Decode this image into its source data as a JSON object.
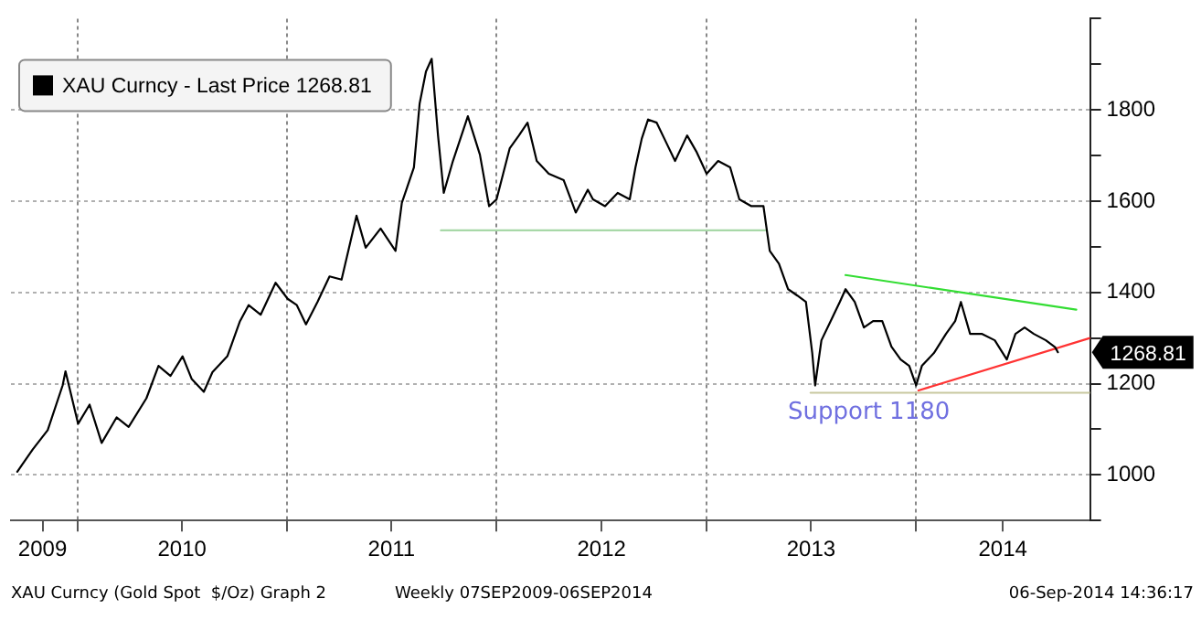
{
  "chart_data": {
    "type": "line",
    "legend": "top left",
    "grid": true,
    "marker": "none",
    "xlim": [
      "2009-09-07",
      "2014-10-31"
    ],
    "ylim": [
      900,
      2000
    ],
    "xticks": [
      {
        "value": "2009-11-01",
        "label": "2009"
      },
      {
        "value": "2010-01-01",
        "label": null
      },
      {
        "value": "2010-07-02",
        "label": "2010"
      },
      {
        "value": "2011-01-01",
        "label": null
      },
      {
        "value": "2011-07-02",
        "label": "2011"
      },
      {
        "value": "2012-01-01",
        "label": null
      },
      {
        "value": "2012-07-02",
        "label": "2012"
      },
      {
        "value": "2013-01-01",
        "label": null
      },
      {
        "value": "2013-07-02",
        "label": "2013"
      },
      {
        "value": "2014-01-01",
        "label": null
      },
      {
        "value": "2014-06-01",
        "label": "2014"
      }
    ],
    "yticks": [
      {
        "value": 900,
        "label": null
      },
      1000,
      {
        "value": 1100,
        "label": null
      },
      1200,
      {
        "value": 1300,
        "label": null
      },
      1400,
      {
        "value": 1500,
        "label": null
      },
      1600,
      {
        "value": 1700,
        "label": null
      },
      1800,
      {
        "value": 1900,
        "label": null
      },
      {
        "value": 2000,
        "label": null
      }
    ],
    "annotations": [
      "XAU Curncy (Gold Spot  $/Oz) Graph 2",
      "Weekly 07SEP2009-06SEP2014",
      "06-Sep-2014 14:36:17",
      "Support 1180",
      "1268.81"
    ],
    "series": [
      {
        "name": "XAU Curncy - Last Price 1268.81",
        "color": "#000000",
        "x": [
          "2009-09-18",
          "2009-10-15",
          "2009-11-10",
          "2009-12-06",
          "2009-12-11",
          "2010-01-02",
          "2010-01-22",
          "2010-02-12",
          "2010-03-10",
          "2010-03-31",
          "2010-05-01",
          "2010-05-22",
          "2010-06-12",
          "2010-07-03",
          "2010-07-19",
          "2010-08-09",
          "2010-08-24",
          "2010-09-19",
          "2010-10-11",
          "2010-10-26",
          "2010-11-16",
          "2010-12-12",
          "2011-01-02",
          "2011-01-18",
          "2011-02-03",
          "2011-02-23",
          "2011-03-16",
          "2011-04-06",
          "2011-05-02",
          "2011-05-18",
          "2011-06-13",
          "2011-07-09",
          "2011-07-20",
          "2011-08-10",
          "2011-08-20",
          "2011-08-31",
          "2011-09-10",
          "2011-09-21",
          "2011-10-01",
          "2011-10-17",
          "2011-11-12",
          "2011-12-03",
          "2011-12-19",
          "2012-01-01",
          "2012-01-24",
          "2012-02-09",
          "2012-02-24",
          "2012-03-11",
          "2012-04-01",
          "2012-04-27",
          "2012-05-18",
          "2012-06-08",
          "2012-06-17",
          "2012-07-08",
          "2012-07-30",
          "2012-08-20",
          "2012-08-30",
          "2012-09-10",
          "2012-09-21",
          "2012-10-06",
          "2012-10-22",
          "2012-11-07",
          "2012-11-28",
          "2012-12-14",
          "2013-01-01",
          "2013-01-21",
          "2013-02-11",
          "2013-02-27",
          "2013-03-20",
          "2013-04-10",
          "2013-04-21",
          "2013-05-07",
          "2013-05-23",
          "2013-06-08",
          "2013-06-23",
          "2013-07-04",
          "2013-07-09",
          "2013-07-20",
          "2013-08-05",
          "2013-08-21",
          "2013-08-31",
          "2013-09-16",
          "2013-10-02",
          "2013-10-18",
          "2013-11-03",
          "2013-11-19",
          "2013-12-05",
          "2013-12-20",
          "2014-01-01",
          "2014-01-11",
          "2014-02-01",
          "2014-02-22",
          "2014-03-10",
          "2014-03-20",
          "2014-04-05",
          "2014-04-26",
          "2014-05-18",
          "2014-06-08",
          "2014-06-23",
          "2014-07-09",
          "2014-07-25",
          "2014-08-15",
          "2014-08-31",
          "2014-09-05"
        ],
        "values": [
          1007,
          1056,
          1098,
          1196,
          1227,
          1112,
          1154,
          1070,
          1126,
          1105,
          1168,
          1239,
          1217,
          1260,
          1210,
          1182,
          1225,
          1260,
          1337,
          1372,
          1351,
          1421,
          1386,
          1372,
          1330,
          1379,
          1435,
          1428,
          1568,
          1498,
          1540,
          1491,
          1596,
          1674,
          1814,
          1884,
          1912,
          1744,
          1618,
          1688,
          1786,
          1702,
          1589,
          1604,
          1716,
          1744,
          1772,
          1688,
          1660,
          1646,
          1575,
          1625,
          1604,
          1589,
          1618,
          1604,
          1674,
          1737,
          1779,
          1772,
          1730,
          1688,
          1744,
          1709,
          1660,
          1688,
          1674,
          1604,
          1589,
          1589,
          1491,
          1463,
          1407,
          1393,
          1379,
          1267,
          1196,
          1295,
          1337,
          1379,
          1407,
          1379,
          1323,
          1337,
          1337,
          1281,
          1253,
          1239,
          1196,
          1239,
          1267,
          1309,
          1337,
          1379,
          1309,
          1309,
          1295,
          1253,
          1309,
          1323,
          1309,
          1295,
          1280,
          1268.81
        ]
      },
      {
        "type": "line",
        "color": "#a8d8a8",
        "x": [
          "2011-09-26",
          "2013-04-15"
        ],
        "values": [
          1536,
          1536
        ]
      },
      {
        "type": "line",
        "color": "#33dd33",
        "x": [
          "2013-08-31",
          "2014-10-07"
        ],
        "values": [
          1438,
          1362
        ]
      },
      {
        "type": "line",
        "color": "#ff3333",
        "x": [
          "2014-01-05",
          "2014-10-31"
        ],
        "values": [
          1185,
          1300
        ]
      },
      {
        "type": "line",
        "color": "#c8c8a0",
        "x": [
          "2013-07-01",
          "2014-10-31"
        ],
        "values": [
          1180,
          1180
        ]
      }
    ]
  }
}
